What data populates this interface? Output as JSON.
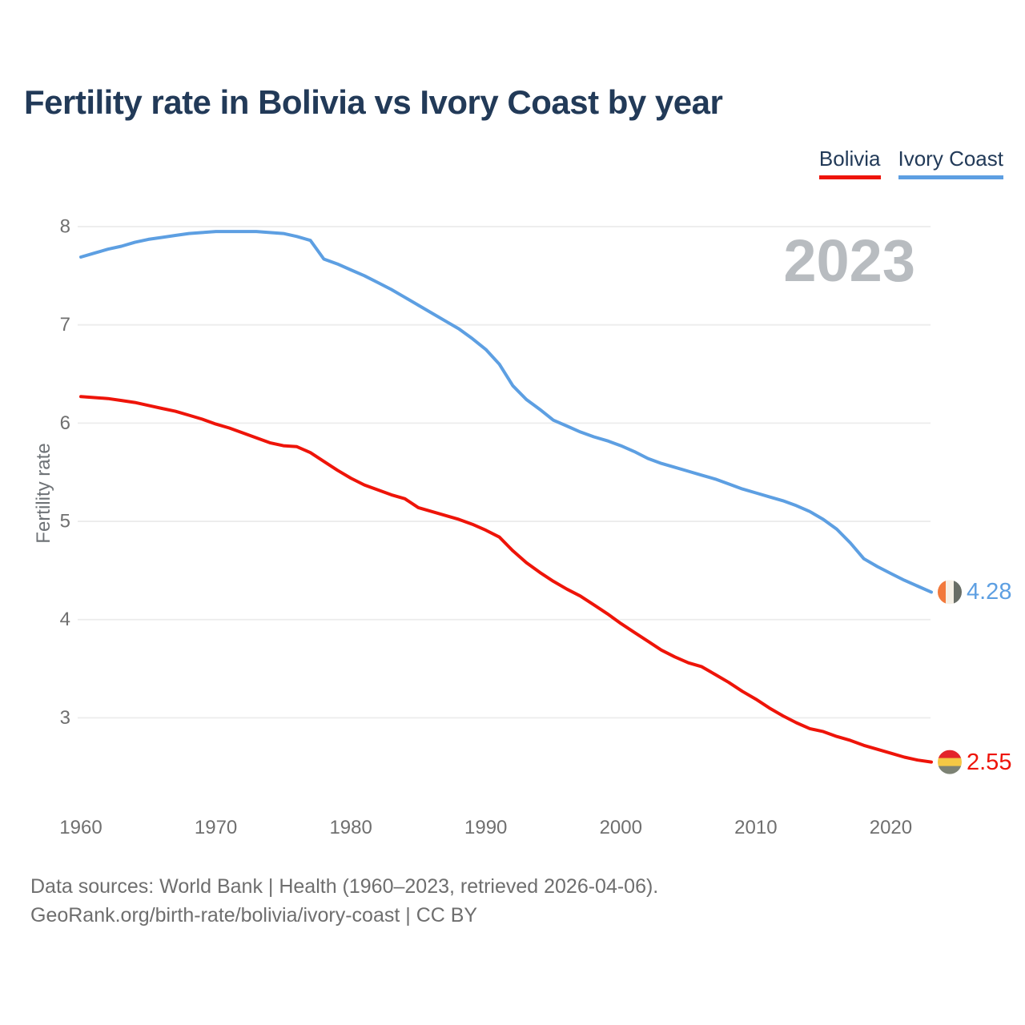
{
  "title": "Fertility rate in Bolivia vs Ivory Coast by year",
  "watermark": "2023",
  "legend": {
    "items": [
      {
        "label": "Bolivia",
        "color": "#ee1409"
      },
      {
        "label": "Ivory Coast",
        "color": "#5d9fe2"
      }
    ]
  },
  "colors": {
    "title_text": "#223a58",
    "axis_text": "#6f6f6f",
    "gridline": "#ececec",
    "watermark": "#b8bcc0",
    "background": "#ffffff"
  },
  "chart_data": {
    "type": "line",
    "title": "Fertility rate in Bolivia vs Ivory Coast by year",
    "xlabel": "",
    "ylabel": "Fertility rate",
    "grid": "horizontal",
    "legend_position": "top-right",
    "xlim": [
      1960,
      2023
    ],
    "ylim": [
      2.4,
      8.15
    ],
    "x_ticks": [
      1960,
      1970,
      1980,
      1990,
      2000,
      2010,
      2020
    ],
    "y_ticks": [
      8,
      7,
      6,
      5,
      4,
      3
    ],
    "years": [
      1960,
      1961,
      1962,
      1963,
      1964,
      1965,
      1966,
      1967,
      1968,
      1969,
      1970,
      1971,
      1972,
      1973,
      1974,
      1975,
      1976,
      1977,
      1978,
      1979,
      1980,
      1981,
      1982,
      1983,
      1984,
      1985,
      1986,
      1987,
      1988,
      1989,
      1990,
      1991,
      1992,
      1993,
      1994,
      1995,
      1996,
      1997,
      1998,
      1999,
      2000,
      2001,
      2002,
      2003,
      2004,
      2005,
      2006,
      2007,
      2008,
      2009,
      2010,
      2011,
      2012,
      2013,
      2014,
      2015,
      2016,
      2017,
      2018,
      2019,
      2020,
      2021,
      2022,
      2023
    ],
    "series": [
      {
        "name": "Ivory Coast",
        "color": "#5d9fe2",
        "end_label": "4.28",
        "end_value": 4.28,
        "flag_orientation": "vertical",
        "flag_stripes": [
          "#f2793b",
          "#f5f0e6",
          "#686d66"
        ],
        "values": [
          7.69,
          7.73,
          7.77,
          7.8,
          7.84,
          7.87,
          7.89,
          7.91,
          7.93,
          7.94,
          7.95,
          7.95,
          7.95,
          7.95,
          7.94,
          7.93,
          7.9,
          7.86,
          7.67,
          7.62,
          7.56,
          7.5,
          7.43,
          7.36,
          7.28,
          7.2,
          7.12,
          7.04,
          6.96,
          6.86,
          6.75,
          6.6,
          6.38,
          6.24,
          6.14,
          6.03,
          5.97,
          5.91,
          5.86,
          5.82,
          5.77,
          5.71,
          5.64,
          5.59,
          5.55,
          5.51,
          5.47,
          5.43,
          5.38,
          5.33,
          5.29,
          5.25,
          5.21,
          5.16,
          5.1,
          5.02,
          4.92,
          4.78,
          4.62,
          4.54,
          4.47,
          4.4,
          4.34,
          4.28
        ]
      },
      {
        "name": "Bolivia",
        "color": "#ee1409",
        "end_label": "2.55",
        "end_value": 2.55,
        "flag_orientation": "horizontal",
        "flag_stripes": [
          "#e3242b",
          "#f4c845",
          "#7c8274"
        ],
        "values": [
          6.27,
          6.26,
          6.25,
          6.23,
          6.21,
          6.18,
          6.15,
          6.12,
          6.08,
          6.04,
          5.99,
          5.95,
          5.9,
          5.85,
          5.8,
          5.77,
          5.76,
          5.7,
          5.61,
          5.52,
          5.44,
          5.37,
          5.32,
          5.27,
          5.23,
          5.14,
          5.1,
          5.06,
          5.02,
          4.97,
          4.91,
          4.84,
          4.7,
          4.58,
          4.48,
          4.39,
          4.31,
          4.24,
          4.15,
          4.06,
          3.96,
          3.87,
          3.78,
          3.69,
          3.62,
          3.56,
          3.52,
          3.44,
          3.36,
          3.27,
          3.19,
          3.1,
          3.02,
          2.95,
          2.89,
          2.86,
          2.81,
          2.77,
          2.72,
          2.68,
          2.64,
          2.6,
          2.57,
          2.55
        ]
      }
    ]
  },
  "footer": {
    "line1": "Data sources: World Bank | Health (1960–2023, retrieved 2026-04-06).",
    "line2": "GeoRank.org/birth-rate/bolivia/ivory-coast | CC BY"
  }
}
